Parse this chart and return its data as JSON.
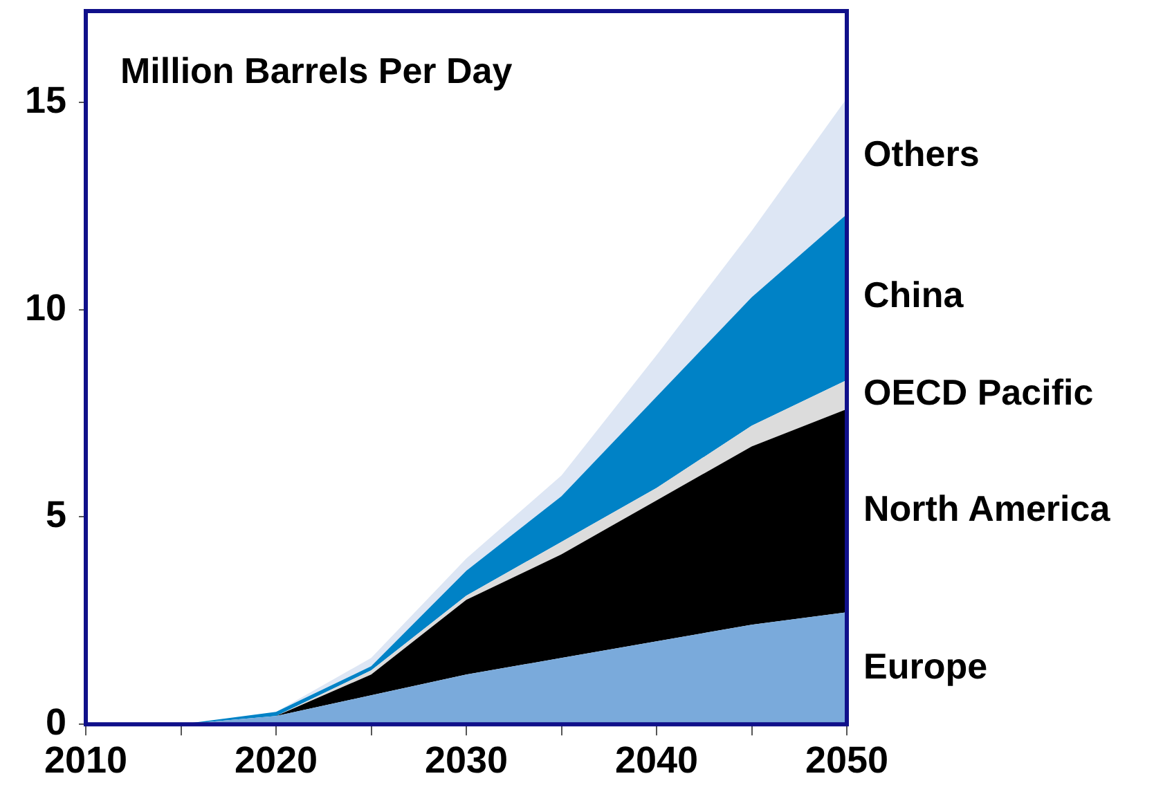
{
  "chart_data": {
    "type": "area",
    "title": "Million Barrels Per Day",
    "stacked": true,
    "x": [
      2010,
      2015,
      2020,
      2025,
      2030,
      2035,
      2040,
      2045,
      2050
    ],
    "series": [
      {
        "name": "Europe",
        "color": "#7aaadb",
        "values": [
          0,
          0,
          0.2,
          0.7,
          1.2,
          1.6,
          2.0,
          2.4,
          2.7
        ]
      },
      {
        "name": "North America",
        "color": "#000000",
        "values": [
          0,
          0,
          0,
          0.5,
          1.8,
          2.5,
          3.4,
          4.3,
          4.9
        ]
      },
      {
        "name": "OECD Pacific",
        "color": "#dcdcdc",
        "values": [
          0,
          0,
          0,
          0.1,
          0.1,
          0.3,
          0.3,
          0.5,
          0.7
        ]
      },
      {
        "name": "China",
        "color": "#0082c6",
        "values": [
          0,
          0,
          0.1,
          0.1,
          0.6,
          1.1,
          2.2,
          3.1,
          4.0
        ]
      },
      {
        "name": "Others",
        "color": "#dde6f4",
        "values": [
          0,
          0,
          0,
          0.2,
          0.3,
          0.5,
          1.0,
          1.6,
          2.8
        ]
      }
    ],
    "xlim": [
      2010,
      2050
    ],
    "xticks": [
      2010,
      {
        "value": 2015,
        "label": null
      },
      2020,
      {
        "value": 2025,
        "label": null
      },
      2030,
      {
        "value": 2035,
        "label": null
      },
      2040,
      {
        "value": 2045,
        "label": null
      },
      2050
    ],
    "ylim": [
      0,
      17.2
    ],
    "yticks": [
      0,
      5,
      10,
      15
    ],
    "grid": false,
    "legend": false
  }
}
